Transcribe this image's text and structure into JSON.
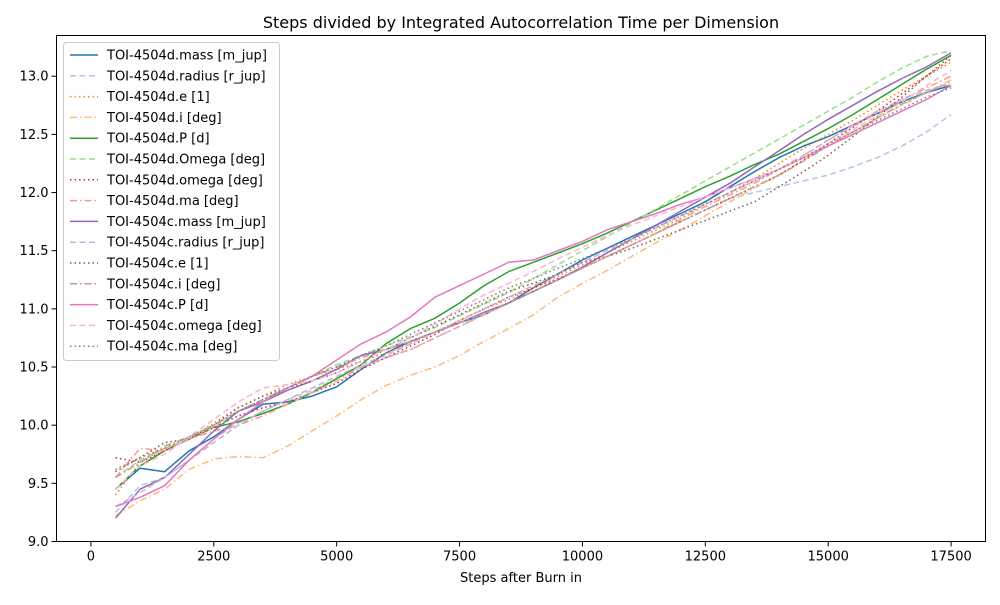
{
  "chart_data": {
    "type": "line",
    "title": "Steps divided by Integrated Autocorrelation Time per Dimension",
    "xlabel": "Steps after Burn in",
    "ylabel": "",
    "xlim": [
      -700,
      18200
    ],
    "ylim": [
      9.0,
      13.35
    ],
    "xticks": [
      0,
      2500,
      5000,
      7500,
      10000,
      12500,
      15000,
      17500
    ],
    "xtick_labels": [
      "0",
      "2500",
      "5000",
      "7500",
      "10000",
      "12500",
      "15000",
      "17500"
    ],
    "yticks": [
      9.0,
      9.5,
      10.0,
      10.5,
      11.0,
      11.5,
      12.0,
      12.5,
      13.0
    ],
    "ytick_labels": [
      "9.0",
      "9.5",
      "10.0",
      "10.5",
      "11.0",
      "11.5",
      "12.0",
      "12.5",
      "13.0"
    ],
    "grid": false,
    "legend_position": "top-left",
    "x": [
      500,
      1000,
      1500,
      2000,
      2500,
      3000,
      3500,
      4000,
      4500,
      5000,
      5500,
      6000,
      6500,
      7000,
      7500,
      8000,
      8500,
      9000,
      9500,
      10000,
      10500,
      11000,
      11500,
      12000,
      12500,
      13000,
      13500,
      14000,
      14500,
      15000,
      15500,
      16000,
      16500,
      17000,
      17500
    ],
    "series": [
      {
        "name": "TOI-4504d.mass [m_jup]",
        "color": "#1f77b4",
        "dash": "solid",
        "opacity": 1.0,
        "values": [
          9.45,
          9.63,
          9.6,
          9.78,
          9.9,
          10.05,
          10.18,
          10.2,
          10.25,
          10.33,
          10.48,
          10.62,
          10.72,
          10.8,
          10.88,
          10.95,
          11.05,
          11.18,
          11.3,
          11.42,
          11.52,
          11.62,
          11.72,
          11.82,
          11.92,
          12.05,
          12.18,
          12.3,
          12.4,
          12.48,
          12.58,
          12.68,
          12.78,
          12.86,
          12.92
        ]
      },
      {
        "name": "TOI-4504d.radius [r_jup]",
        "color": "#aec7e8",
        "dash": "dashed",
        "opacity": 1.0,
        "values": [
          9.25,
          9.48,
          9.55,
          9.7,
          9.88,
          10.02,
          10.12,
          10.22,
          10.3,
          10.4,
          10.5,
          10.58,
          10.65,
          10.75,
          10.85,
          10.95,
          11.05,
          11.15,
          11.25,
          11.35,
          11.45,
          11.55,
          11.65,
          11.75,
          11.85,
          11.95,
          12.0,
          12.05,
          12.1,
          12.15,
          12.22,
          12.3,
          12.4,
          12.52,
          12.67
        ]
      },
      {
        "name": "TOI-4504d.e [1]",
        "color": "#ff7f0e",
        "dash": "dotted",
        "opacity": 1.0,
        "values": [
          9.4,
          9.68,
          9.8,
          9.88,
          10.02,
          10.15,
          10.25,
          10.35,
          10.42,
          10.48,
          10.55,
          10.62,
          10.7,
          10.8,
          10.9,
          11.0,
          11.08,
          11.18,
          11.28,
          11.38,
          11.48,
          11.58,
          11.68,
          11.78,
          11.9,
          12.0,
          12.12,
          12.25,
          12.38,
          12.5,
          12.62,
          12.75,
          12.88,
          13.0,
          13.12
        ]
      },
      {
        "name": "TOI-4504d.i [deg]",
        "color": "#ffbb78",
        "dash": "dashdot",
        "opacity": 1.0,
        "values": [
          9.22,
          9.35,
          9.45,
          9.62,
          9.71,
          9.73,
          9.72,
          9.82,
          9.95,
          10.08,
          10.22,
          10.34,
          10.43,
          10.5,
          10.6,
          10.72,
          10.83,
          10.95,
          11.1,
          11.22,
          11.33,
          11.45,
          11.57,
          11.68,
          11.8,
          11.92,
          12.04,
          12.15,
          12.28,
          12.4,
          12.52,
          12.64,
          12.75,
          12.86,
          12.97
        ]
      },
      {
        "name": "TOI-4504d.P [d]",
        "color": "#2ca02c",
        "dash": "solid",
        "opacity": 1.0,
        "values": [
          9.45,
          9.65,
          9.78,
          9.88,
          9.98,
          10.03,
          10.1,
          10.18,
          10.28,
          10.4,
          10.52,
          10.7,
          10.83,
          10.92,
          11.05,
          11.2,
          11.32,
          11.4,
          11.48,
          11.56,
          11.65,
          11.75,
          11.85,
          11.95,
          12.05,
          12.14,
          12.24,
          12.33,
          12.44,
          12.55,
          12.67,
          12.8,
          12.93,
          13.06,
          13.18
        ]
      },
      {
        "name": "TOI-4504d.Omega [deg]",
        "color": "#98df8a",
        "dash": "dashed",
        "opacity": 1.0,
        "values": [
          9.55,
          9.7,
          9.8,
          9.88,
          9.98,
          10.12,
          10.22,
          10.32,
          10.42,
          10.52,
          10.6,
          10.68,
          10.76,
          10.84,
          10.94,
          11.04,
          11.14,
          11.26,
          11.38,
          11.5,
          11.62,
          11.74,
          11.86,
          11.98,
          12.1,
          12.22,
          12.34,
          12.46,
          12.58,
          12.7,
          12.82,
          12.95,
          13.07,
          13.17,
          13.22
        ]
      },
      {
        "name": "TOI-4504d.omega [deg]",
        "color": "#d62728",
        "dash": "dotted",
        "opacity": 1.0,
        "values": [
          9.72,
          9.68,
          9.78,
          9.88,
          9.98,
          10.08,
          10.15,
          10.2,
          10.28,
          10.36,
          10.48,
          10.58,
          10.68,
          10.78,
          10.9,
          11.0,
          11.1,
          11.18,
          11.26,
          11.35,
          11.45,
          11.55,
          11.65,
          11.75,
          11.85,
          11.95,
          12.05,
          12.15,
          12.28,
          12.42,
          12.56,
          12.7,
          12.85,
          13.0,
          13.15
        ]
      },
      {
        "name": "TOI-4504d.ma [deg]",
        "color": "#ff9896",
        "dash": "dashdot",
        "opacity": 1.0,
        "values": [
          9.55,
          9.8,
          9.78,
          9.88,
          9.95,
          10.0,
          10.08,
          10.18,
          10.28,
          10.38,
          10.5,
          10.58,
          10.65,
          10.75,
          10.85,
          10.95,
          11.05,
          11.15,
          11.25,
          11.35,
          11.45,
          11.55,
          11.65,
          11.77,
          11.88,
          11.98,
          12.08,
          12.2,
          12.32,
          12.45,
          12.57,
          12.68,
          12.8,
          12.9,
          13.0
        ]
      },
      {
        "name": "TOI-4504c.mass [m_jup]",
        "color": "#9467bd",
        "dash": "solid",
        "opacity": 1.0,
        "values": [
          9.2,
          9.45,
          9.55,
          9.75,
          9.95,
          10.12,
          10.2,
          10.3,
          10.38,
          10.48,
          10.6,
          10.65,
          10.72,
          10.8,
          10.88,
          10.97,
          11.05,
          11.15,
          11.25,
          11.36,
          11.48,
          11.6,
          11.72,
          11.84,
          11.96,
          12.08,
          12.22,
          12.36,
          12.5,
          12.63,
          12.75,
          12.87,
          12.98,
          13.08,
          13.2
        ]
      },
      {
        "name": "TOI-4504c.radius [r_jup]",
        "color": "#c5b0d5",
        "dash": "dashed",
        "opacity": 1.0,
        "values": [
          9.3,
          9.42,
          9.55,
          9.7,
          9.85,
          10.0,
          10.12,
          10.22,
          10.32,
          10.42,
          10.52,
          10.6,
          10.7,
          10.8,
          10.9,
          11.0,
          11.1,
          11.2,
          11.3,
          11.4,
          11.5,
          11.6,
          11.7,
          11.8,
          11.9,
          12.0,
          12.1,
          12.2,
          12.32,
          12.45,
          12.58,
          12.7,
          12.8,
          12.88,
          12.93
        ]
      },
      {
        "name": "TOI-4504c.e [1]",
        "color": "#8c564b",
        "dash": "dotted",
        "opacity": 1.0,
        "values": [
          9.6,
          9.72,
          9.85,
          9.88,
          10.0,
          10.15,
          10.25,
          10.32,
          10.38,
          10.45,
          10.55,
          10.65,
          10.75,
          10.85,
          10.95,
          11.05,
          11.15,
          11.22,
          11.3,
          11.4,
          11.45,
          11.52,
          11.6,
          11.68,
          11.76,
          11.84,
          11.92,
          12.05,
          12.18,
          12.32,
          12.48,
          12.65,
          12.82,
          13.0,
          13.18
        ]
      },
      {
        "name": "TOI-4504c.i [deg]",
        "color": "#c49c94",
        "dash": "dashdot",
        "opacity": 1.0,
        "values": [
          9.55,
          9.68,
          9.82,
          9.9,
          10.0,
          10.12,
          10.22,
          10.32,
          10.42,
          10.5,
          10.58,
          10.65,
          10.72,
          10.8,
          10.88,
          10.96,
          11.05,
          11.15,
          11.25,
          11.35,
          11.45,
          11.55,
          11.65,
          11.75,
          11.85,
          11.95,
          12.05,
          12.15,
          12.27,
          12.4,
          12.52,
          12.64,
          12.76,
          12.86,
          12.95
        ]
      },
      {
        "name": "TOI-4504c.P [d]",
        "color": "#e377c2",
        "dash": "solid",
        "opacity": 1.0,
        "values": [
          9.3,
          9.38,
          9.48,
          9.7,
          9.88,
          10.05,
          10.2,
          10.32,
          10.42,
          10.56,
          10.7,
          10.8,
          10.93,
          11.1,
          11.2,
          11.3,
          11.4,
          11.42,
          11.5,
          11.58,
          11.68,
          11.75,
          11.82,
          11.9,
          11.96,
          12.04,
          12.12,
          12.2,
          12.3,
          12.4,
          12.5,
          12.6,
          12.7,
          12.8,
          12.92
        ]
      },
      {
        "name": "TOI-4504c.omega [deg]",
        "color": "#f7b6d2",
        "dash": "dashed",
        "opacity": 1.0,
        "values": [
          9.45,
          9.65,
          9.75,
          9.9,
          10.05,
          10.2,
          10.32,
          10.35,
          10.38,
          10.45,
          10.55,
          10.65,
          10.75,
          10.87,
          11.0,
          11.12,
          11.22,
          11.32,
          11.43,
          11.53,
          11.63,
          11.72,
          11.8,
          11.88,
          11.96,
          12.04,
          12.12,
          12.2,
          12.3,
          12.42,
          12.54,
          12.66,
          12.78,
          12.92,
          13.05
        ]
      },
      {
        "name": "TOI-4504c.ma [deg]",
        "color": "#7f7f7f",
        "dash": "dotted",
        "opacity": 1.0,
        "values": [
          9.62,
          9.72,
          9.8,
          9.9,
          10.0,
          10.12,
          10.22,
          10.32,
          10.42,
          10.5,
          10.6,
          10.68,
          10.78,
          10.88,
          10.98,
          11.08,
          11.18,
          11.26,
          11.35,
          11.43,
          11.52,
          11.6,
          11.7,
          11.8,
          11.9,
          12.0,
          12.1,
          12.2,
          12.3,
          12.42,
          12.52,
          12.62,
          12.72,
          12.82,
          12.9
        ]
      }
    ]
  }
}
